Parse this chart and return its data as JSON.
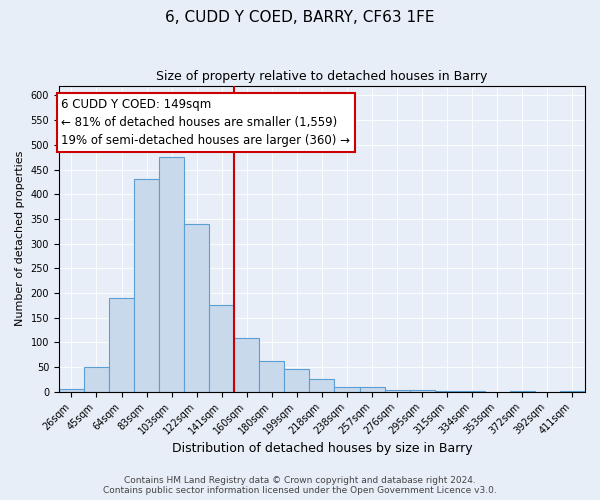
{
  "title": "6, CUDD Y COED, BARRY, CF63 1FE",
  "subtitle": "Size of property relative to detached houses in Barry",
  "xlabel": "Distribution of detached houses by size in Barry",
  "ylabel": "Number of detached properties",
  "bar_labels": [
    "26sqm",
    "45sqm",
    "64sqm",
    "83sqm",
    "103sqm",
    "122sqm",
    "141sqm",
    "160sqm",
    "180sqm",
    "199sqm",
    "218sqm",
    "238sqm",
    "257sqm",
    "276sqm",
    "295sqm",
    "315sqm",
    "334sqm",
    "353sqm",
    "372sqm",
    "392sqm",
    "411sqm"
  ],
  "bar_heights": [
    5,
    50,
    190,
    430,
    475,
    340,
    175,
    108,
    62,
    45,
    25,
    10,
    10,
    3,
    3,
    2,
    1,
    0,
    2,
    0,
    2
  ],
  "bar_color": "#c9d9ec",
  "bar_edge_color": "#5a9fd4",
  "vline_color": "#cc0000",
  "annotation_line1": "6 CUDD Y COED: 149sqm",
  "annotation_line2": "← 81% of detached houses are smaller (1,559)",
  "annotation_line3": "19% of semi-detached houses are larger (360) →",
  "annotation_box_color": "#ffffff",
  "annotation_box_edge_color": "#cc0000",
  "ylim": [
    0,
    620
  ],
  "yticks": [
    0,
    50,
    100,
    150,
    200,
    250,
    300,
    350,
    400,
    450,
    500,
    550,
    600
  ],
  "footer_text": "Contains HM Land Registry data © Crown copyright and database right 2024.\nContains public sector information licensed under the Open Government Licence v3.0.",
  "background_color": "#e8eef7",
  "plot_bg_color": "#e8eef7",
  "title_fontsize": 11,
  "subtitle_fontsize": 9,
  "xlabel_fontsize": 9,
  "ylabel_fontsize": 8,
  "tick_fontsize": 7,
  "annotation_fontsize": 8.5,
  "footer_fontsize": 6.5,
  "vline_bar_index": 7
}
